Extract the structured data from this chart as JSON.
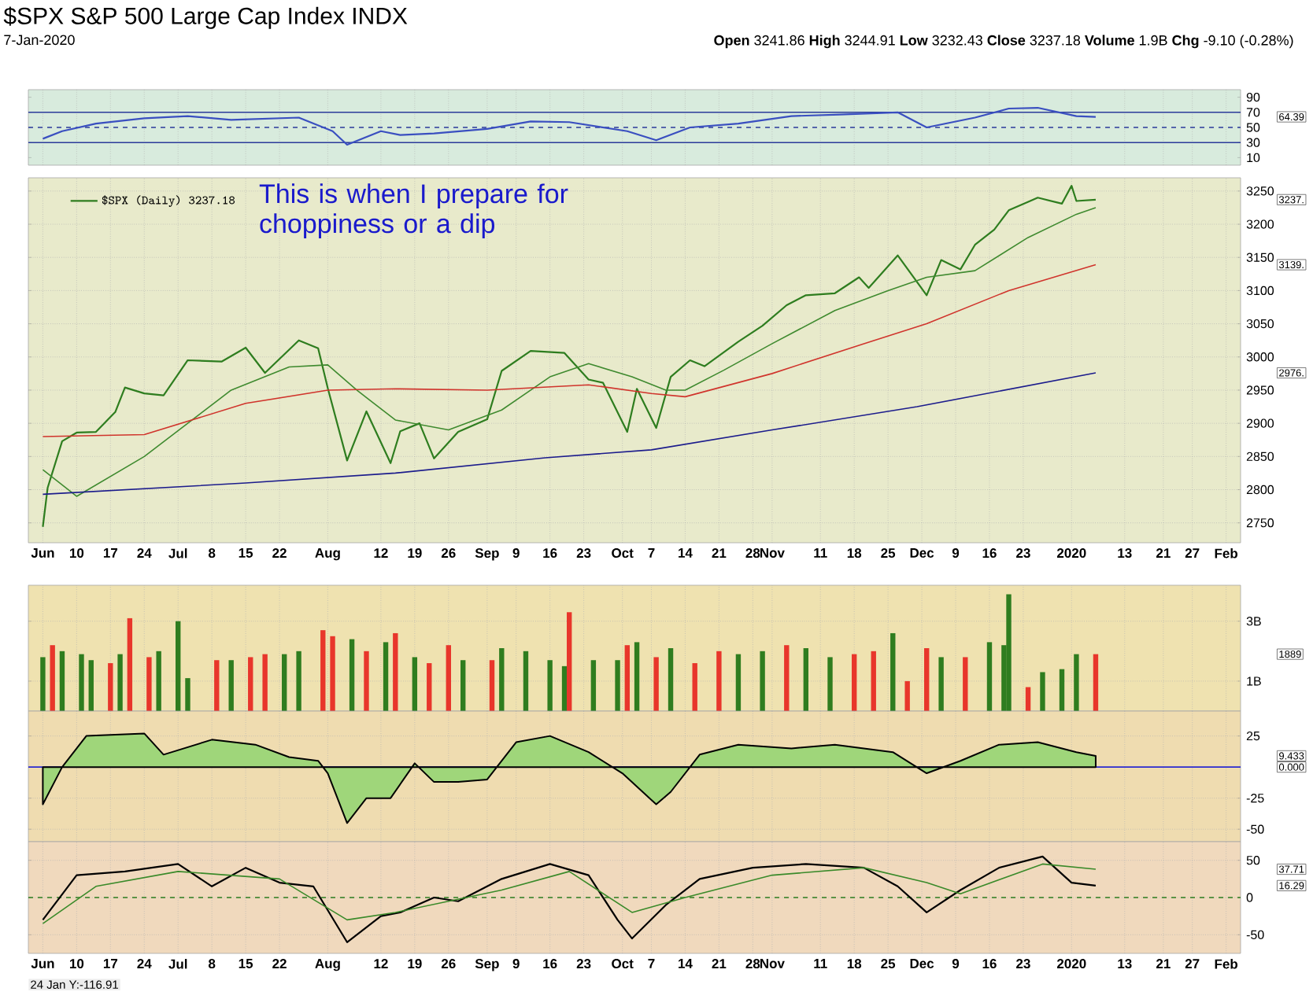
{
  "chart_data": [
    {
      "type": "line",
      "title": "$SPX S&P 500 Large Cap Index INDX",
      "subtitle": "7-Jan-2020",
      "annotations": [
        "**Open** 3241.86 **High** 3244.91 **Low** 3232.43 **Close** 3237.18 **Volume** 1.9B **Chg** -9.10 (-0.28%)",
        "64.39"
      ],
      "xlim": [
        "2019-05-31",
        "2020-02-06"
      ],
      "xticks": [
        {
          "value": "2019-06-03",
          "label": null
        },
        {
          "value": "2019-06-10",
          "label": null
        },
        {
          "value": "2019-06-17",
          "label": null
        },
        {
          "value": "2019-06-24",
          "label": null
        },
        {
          "value": "2019-07-01",
          "label": null
        },
        {
          "value": "2019-07-08",
          "label": null
        },
        {
          "value": "2019-07-15",
          "label": null
        },
        {
          "value": "2019-07-22",
          "label": null
        },
        {
          "value": "2019-08-01",
          "label": null
        },
        {
          "value": "2019-08-12",
          "label": null
        },
        {
          "value": "2019-08-19",
          "label": null
        },
        {
          "value": "2019-08-26",
          "label": null
        },
        {
          "value": "2019-09-03",
          "label": null
        },
        {
          "value": "2019-09-09",
          "label": null
        },
        {
          "value": "2019-09-16",
          "label": null
        },
        {
          "value": "2019-09-23",
          "label": null
        },
        {
          "value": "2019-10-01",
          "label": null
        },
        {
          "value": "2019-10-07",
          "label": null
        },
        {
          "value": "2019-10-14",
          "label": null
        },
        {
          "value": "2019-10-21",
          "label": null
        },
        {
          "value": "2019-10-28",
          "label": null
        },
        {
          "value": "2019-11-01",
          "label": null
        },
        {
          "value": "2019-11-11",
          "label": null
        },
        {
          "value": "2019-11-18",
          "label": null
        },
        {
          "value": "2019-11-25",
          "label": null
        },
        {
          "value": "2019-12-02",
          "label": null
        },
        {
          "value": "2019-12-09",
          "label": null
        },
        {
          "value": "2019-12-16",
          "label": null
        },
        {
          "value": "2019-12-23",
          "label": null
        },
        {
          "value": "2020-01-02",
          "label": null
        },
        {
          "value": "2020-01-13",
          "label": null
        },
        {
          "value": "2020-01-21",
          "label": null
        },
        {
          "value": "2020-01-27",
          "label": null
        },
        {
          "value": "2020-02-03",
          "label": null
        }
      ],
      "ylim": [
        0,
        100
      ],
      "yticks": [
        10,
        30,
        50,
        70,
        90
      ],
      "grid": "x",
      "tick_labels": "y",
      "ref_lines": [
        {
          "axis": "y",
          "value": 70,
          "color": "#2a3a9a",
          "line_style": "solid"
        },
        {
          "axis": "y",
          "value": 50,
          "color": "#2a3a9a",
          "line_style": "dashed"
        },
        {
          "axis": "y",
          "value": 30,
          "color": "#2a3a9a",
          "line_style": "solid"
        }
      ],
      "series": [
        {
          "color": "#3a4fc0",
          "x": [
            "2019-06-03",
            "2019-06-07",
            "2019-06-14",
            "2019-06-24",
            "2019-07-03",
            "2019-07-12",
            "2019-07-26",
            "2019-08-02",
            "2019-08-05",
            "2019-08-12",
            "2019-08-16",
            "2019-08-23",
            "2019-09-03",
            "2019-09-12",
            "2019-09-20",
            "2019-10-02",
            "2019-10-08",
            "2019-10-15",
            "2019-10-25",
            "2019-11-05",
            "2019-11-15",
            "2019-11-27",
            "2019-12-03",
            "2019-12-13",
            "2019-12-20",
            "2019-12-26",
            "2020-01-03",
            "2020-01-07"
          ],
          "values": [
            35,
            45,
            55,
            62,
            65,
            60,
            63,
            45,
            27,
            45,
            40,
            42,
            48,
            58,
            57,
            45,
            33,
            50,
            55,
            65,
            67,
            70,
            50,
            63,
            75,
            76,
            65,
            64
          ]
        }
      ]
    },
    {
      "type": "line",
      "legend": "top left",
      "annotations": [
        "This is when I prepare for choppiness or a dip",
        "3237.",
        "3139.",
        "2976."
      ],
      "xlim": [
        "2019-05-31",
        "2020-02-06"
      ],
      "xticks": [
        {
          "value": "2019-06-03",
          "label": "Jun"
        },
        {
          "value": "2019-06-10",
          "label": "10"
        },
        {
          "value": "2019-06-17",
          "label": "17"
        },
        {
          "value": "2019-06-24",
          "label": "24"
        },
        {
          "value": "2019-07-01",
          "label": "Jul"
        },
        {
          "value": "2019-07-08",
          "label": "8"
        },
        {
          "value": "2019-07-15",
          "label": "15"
        },
        {
          "value": "2019-07-22",
          "label": "22"
        },
        {
          "value": "2019-08-01",
          "label": "Aug"
        },
        {
          "value": "2019-08-12",
          "label": "12"
        },
        {
          "value": "2019-08-19",
          "label": "19"
        },
        {
          "value": "2019-08-26",
          "label": "26"
        },
        {
          "value": "2019-09-03",
          "label": "Sep"
        },
        {
          "value": "2019-09-09",
          "label": "9"
        },
        {
          "value": "2019-09-16",
          "label": "16"
        },
        {
          "value": "2019-09-23",
          "label": "23"
        },
        {
          "value": "2019-10-01",
          "label": "Oct"
        },
        {
          "value": "2019-10-07",
          "label": "7"
        },
        {
          "value": "2019-10-14",
          "label": "14"
        },
        {
          "value": "2019-10-21",
          "label": "21"
        },
        {
          "value": "2019-10-28",
          "label": "28"
        },
        {
          "value": "2019-11-01",
          "label": "Nov"
        },
        {
          "value": "2019-11-11",
          "label": "11"
        },
        {
          "value": "2019-11-18",
          "label": "18"
        },
        {
          "value": "2019-11-25",
          "label": "25"
        },
        {
          "value": "2019-12-02",
          "label": "Dec"
        },
        {
          "value": "2019-12-09",
          "label": "9"
        },
        {
          "value": "2019-12-16",
          "label": "16"
        },
        {
          "value": "2019-12-23",
          "label": "23"
        },
        {
          "value": "2020-01-02",
          "label": "2020"
        },
        {
          "value": "2020-01-13",
          "label": "13"
        },
        {
          "value": "2020-01-21",
          "label": "21"
        },
        {
          "value": "2020-01-27",
          "label": "27"
        },
        {
          "value": "2020-02-03",
          "label": "Feb"
        }
      ],
      "ylim": [
        2720,
        3270
      ],
      "yticks": [
        2750,
        2800,
        2850,
        2900,
        2950,
        3000,
        3050,
        3100,
        3150,
        3200,
        3250
      ],
      "grid": true,
      "series": [
        {
          "name": "$SPX (Daily) 3237.18",
          "color": "#2e7d1f",
          "x": [
            "2019-06-03",
            "2019-06-04",
            "2019-06-07",
            "2019-06-10",
            "2019-06-14",
            "2019-06-18",
            "2019-06-20",
            "2019-06-24",
            "2019-06-28",
            "2019-07-03",
            "2019-07-10",
            "2019-07-15",
            "2019-07-19",
            "2019-07-26",
            "2019-07-30",
            "2019-08-01",
            "2019-08-05",
            "2019-08-09",
            "2019-08-14",
            "2019-08-16",
            "2019-08-20",
            "2019-08-23",
            "2019-08-28",
            "2019-09-03",
            "2019-09-06",
            "2019-09-12",
            "2019-09-19",
            "2019-09-24",
            "2019-09-27",
            "2019-10-02",
            "2019-10-04",
            "2019-10-08",
            "2019-10-11",
            "2019-10-15",
            "2019-10-18",
            "2019-10-25",
            "2019-10-30",
            "2019-11-04",
            "2019-11-08",
            "2019-11-14",
            "2019-11-19",
            "2019-11-21",
            "2019-11-27",
            "2019-12-03",
            "2019-12-06",
            "2019-12-10",
            "2019-12-13",
            "2019-12-17",
            "2019-12-20",
            "2019-12-26",
            "2019-12-31",
            "2020-01-02",
            "2020-01-03",
            "2020-01-07"
          ],
          "values": [
            2744,
            2803,
            2873,
            2886,
            2887,
            2917,
            2954,
            2945,
            2942,
            2995,
            2993,
            3014,
            2976,
            3025,
            3013,
            2953,
            2844,
            2918,
            2840,
            2888,
            2900,
            2847,
            2887,
            2906,
            2979,
            3009,
            3006,
            2966,
            2961,
            2887,
            2952,
            2893,
            2970,
            2995,
            2986,
            3023,
            3047,
            3078,
            3093,
            3096,
            3120,
            3104,
            3153,
            3093,
            3146,
            3132,
            3169,
            3192,
            3221,
            3240,
            3231,
            3258,
            3235,
            3237
          ]
        },
        {
          "color": "#3f8a2f",
          "x": [
            "2019-06-03",
            "2019-06-10",
            "2019-06-24",
            "2019-07-03",
            "2019-07-12",
            "2019-07-24",
            "2019-08-01",
            "2019-08-07",
            "2019-08-15",
            "2019-08-26",
            "2019-09-06",
            "2019-09-16",
            "2019-09-24",
            "2019-10-03",
            "2019-10-10",
            "2019-10-14",
            "2019-10-22",
            "2019-11-01",
            "2019-11-14",
            "2019-11-25",
            "2019-12-03",
            "2019-12-13",
            "2019-12-24",
            "2020-01-03",
            "2020-01-07"
          ],
          "values": [
            2830,
            2790,
            2850,
            2900,
            2950,
            2985,
            2988,
            2950,
            2905,
            2890,
            2920,
            2970,
            2990,
            2970,
            2950,
            2950,
            2980,
            3020,
            3070,
            3100,
            3120,
            3130,
            3180,
            3215,
            3225
          ]
        },
        {
          "color": "#d0342c",
          "x": [
            "2019-06-03",
            "2019-06-24",
            "2019-07-15",
            "2019-08-01",
            "2019-08-15",
            "2019-09-03",
            "2019-09-24",
            "2019-10-07",
            "2019-10-14",
            "2019-11-01",
            "2019-11-20",
            "2019-12-03",
            "2019-12-20",
            "2020-01-07"
          ],
          "values": [
            2880,
            2883,
            2930,
            2950,
            2952,
            2950,
            2958,
            2945,
            2940,
            2975,
            3020,
            3050,
            3100,
            3139
          ]
        },
        {
          "color": "#1c1c8c",
          "x": [
            "2019-06-03",
            "2019-07-15",
            "2019-08-15",
            "2019-09-15",
            "2019-10-07",
            "2019-11-01",
            "2019-12-01",
            "2020-01-07"
          ],
          "values": [
            2793,
            2810,
            2825,
            2848,
            2860,
            2890,
            2925,
            2976
          ]
        }
      ]
    },
    {
      "type": "bar",
      "tick_labels": "y",
      "grid": true,
      "annotations": [
        "1889"
      ],
      "xlim": [
        "2019-05-31",
        "2020-02-06"
      ],
      "xticks": [
        {
          "value": "2019-06-03",
          "label": null
        },
        {
          "value": "2019-06-10",
          "label": null
        },
        {
          "value": "2019-06-17",
          "label": null
        },
        {
          "value": "2019-06-24",
          "label": null
        },
        {
          "value": "2019-07-01",
          "label": null
        },
        {
          "value": "2019-07-08",
          "label": null
        },
        {
          "value": "2019-07-15",
          "label": null
        },
        {
          "value": "2019-07-22",
          "label": null
        },
        {
          "value": "2019-08-01",
          "label": null
        },
        {
          "value": "2019-08-12",
          "label": null
        },
        {
          "value": "2019-08-19",
          "label": null
        },
        {
          "value": "2019-08-26",
          "label": null
        },
        {
          "value": "2019-09-03",
          "label": null
        },
        {
          "value": "2019-09-09",
          "label": null
        },
        {
          "value": "2019-09-16",
          "label": null
        },
        {
          "value": "2019-09-23",
          "label": null
        },
        {
          "value": "2019-10-01",
          "label": null
        },
        {
          "value": "2019-10-07",
          "label": null
        },
        {
          "value": "2019-10-14",
          "label": null
        },
        {
          "value": "2019-10-21",
          "label": null
        },
        {
          "value": "2019-10-28",
          "label": null
        },
        {
          "value": "2019-11-01",
          "label": null
        },
        {
          "value": "2019-11-11",
          "label": null
        },
        {
          "value": "2019-11-18",
          "label": null
        },
        {
          "value": "2019-11-25",
          "label": null
        },
        {
          "value": "2019-12-02",
          "label": null
        },
        {
          "value": "2019-12-09",
          "label": null
        },
        {
          "value": "2019-12-16",
          "label": null
        },
        {
          "value": "2019-12-23",
          "label": null
        },
        {
          "value": "2020-01-02",
          "label": null
        },
        {
          "value": "2020-01-13",
          "label": null
        },
        {
          "value": "2020-01-21",
          "label": null
        },
        {
          "value": "2020-01-27",
          "label": null
        },
        {
          "value": "2020-02-03",
          "label": null
        }
      ],
      "ylim": [
        0,
        4.2
      ],
      "yticks": [
        {
          "value": 1,
          "label": "1B"
        },
        {
          "value": 3,
          "label": "3B"
        }
      ],
      "series": [
        {
          "x": [
            "2019-06-03",
            "2019-06-05",
            "2019-06-07",
            "2019-06-11",
            "2019-06-13",
            "2019-06-17",
            "2019-06-19",
            "2019-06-21",
            "2019-06-25",
            "2019-06-27",
            "2019-07-01",
            "2019-07-03",
            "2019-07-09",
            "2019-07-12",
            "2019-07-16",
            "2019-07-19",
            "2019-07-23",
            "2019-07-26",
            "2019-07-31",
            "2019-08-02",
            "2019-08-06",
            "2019-08-09",
            "2019-08-13",
            "2019-08-15",
            "2019-08-19",
            "2019-08-22",
            "2019-08-26",
            "2019-08-29",
            "2019-09-04",
            "2019-09-06",
            "2019-09-11",
            "2019-09-16",
            "2019-09-19",
            "2019-09-20",
            "2019-09-25",
            "2019-09-30",
            "2019-10-02",
            "2019-10-04",
            "2019-10-08",
            "2019-10-11",
            "2019-10-16",
            "2019-10-21",
            "2019-10-25",
            "2019-10-30",
            "2019-11-04",
            "2019-11-08",
            "2019-11-13",
            "2019-11-18",
            "2019-11-22",
            "2019-11-26",
            "2019-11-29",
            "2019-12-03",
            "2019-12-06",
            "2019-12-11",
            "2019-12-16",
            "2019-12-19",
            "2019-12-20",
            "2019-12-24",
            "2019-12-27",
            "2019-12-31",
            "2020-01-03",
            "2020-01-07"
          ],
          "values": [
            1.8,
            2.2,
            2.0,
            1.9,
            1.7,
            1.6,
            1.9,
            3.1,
            1.8,
            2.0,
            3.0,
            1.1,
            1.7,
            1.7,
            1.8,
            1.9,
            1.9,
            2.0,
            2.7,
            2.5,
            2.4,
            2.0,
            2.3,
            2.6,
            1.8,
            1.6,
            2.2,
            1.7,
            1.7,
            2.1,
            2.0,
            1.7,
            1.5,
            3.3,
            1.7,
            1.7,
            2.2,
            2.3,
            1.8,
            2.1,
            1.6,
            2.0,
            1.9,
            2.0,
            2.2,
            2.1,
            1.8,
            1.9,
            2.0,
            2.6,
            1.0,
            2.1,
            1.8,
            1.8,
            2.3,
            2.2,
            3.9,
            0.8,
            1.3,
            1.4,
            1.9,
            1.9
          ],
          "colors": [
            "#2f7d1f",
            "#e8362b",
            "#2f7d1f",
            "#2f7d1f",
            "#2f7d1f",
            "#e8362b",
            "#2f7d1f",
            "#e8362b",
            "#e8362b",
            "#2f7d1f",
            "#2f7d1f",
            "#2f7d1f",
            "#e8362b",
            "#2f7d1f",
            "#e8362b",
            "#e8362b",
            "#2f7d1f",
            "#2f7d1f",
            "#e8362b",
            "#e8362b",
            "#2f7d1f",
            "#e8362b",
            "#2f7d1f",
            "#e8362b",
            "#2f7d1f",
            "#e8362b",
            "#e8362b",
            "#2f7d1f",
            "#e8362b",
            "#2f7d1f",
            "#2f7d1f",
            "#2f7d1f",
            "#2f7d1f",
            "#e8362b",
            "#2f7d1f",
            "#2f7d1f",
            "#e8362b",
            "#2f7d1f",
            "#e8362b",
            "#2f7d1f",
            "#e8362b",
            "#e8362b",
            "#2f7d1f",
            "#2f7d1f",
            "#e8362b",
            "#2f7d1f",
            "#2f7d1f",
            "#e8362b",
            "#e8362b",
            "#2f7d1f",
            "#e8362b",
            "#e8362b",
            "#2f7d1f",
            "#e8362b",
            "#2f7d1f",
            "#2f7d1f",
            "#2f7d1f",
            "#e8362b",
            "#2f7d1f",
            "#2f7d1f",
            "#2f7d1f",
            "#e8362b"
          ]
        }
      ]
    },
    {
      "type": "area",
      "tick_labels": "y",
      "grid": true,
      "annotations": [
        "9.433",
        "0.000"
      ],
      "xlim": [
        "2019-05-31",
        "2020-02-06"
      ],
      "xticks": [
        {
          "value": "2019-06-03",
          "label": null
        },
        {
          "value": "2019-06-10",
          "label": null
        },
        {
          "value": "2019-06-17",
          "label": null
        },
        {
          "value": "2019-06-24",
          "label": null
        },
        {
          "value": "2019-07-01",
          "label": null
        },
        {
          "value": "2019-07-08",
          "label": null
        },
        {
          "value": "2019-07-15",
          "label": null
        },
        {
          "value": "2019-07-22",
          "label": null
        },
        {
          "value": "2019-08-01",
          "label": null
        },
        {
          "value": "2019-08-12",
          "label": null
        },
        {
          "value": "2019-08-19",
          "label": null
        },
        {
          "value": "2019-08-26",
          "label": null
        },
        {
          "value": "2019-09-03",
          "label": null
        },
        {
          "value": "2019-09-09",
          "label": null
        },
        {
          "value": "2019-09-16",
          "label": null
        },
        {
          "value": "2019-09-23",
          "label": null
        },
        {
          "value": "2019-10-01",
          "label": null
        },
        {
          "value": "2019-10-07",
          "label": null
        },
        {
          "value": "2019-10-14",
          "label": null
        },
        {
          "value": "2019-10-21",
          "label": null
        },
        {
          "value": "2019-10-28",
          "label": null
        },
        {
          "value": "2019-11-01",
          "label": null
        },
        {
          "value": "2019-11-11",
          "label": null
        },
        {
          "value": "2019-11-18",
          "label": null
        },
        {
          "value": "2019-11-25",
          "label": null
        },
        {
          "value": "2019-12-02",
          "label": null
        },
        {
          "value": "2019-12-09",
          "label": null
        },
        {
          "value": "2019-12-16",
          "label": null
        },
        {
          "value": "2019-12-23",
          "label": null
        },
        {
          "value": "2020-01-02",
          "label": null
        },
        {
          "value": "2020-01-13",
          "label": null
        },
        {
          "value": "2020-01-21",
          "label": null
        },
        {
          "value": "2020-01-27",
          "label": null
        },
        {
          "value": "2020-02-03",
          "label": null
        }
      ],
      "ylim": [
        -60,
        45
      ],
      "yticks": [
        -50,
        -25,
        25
      ],
      "ref_lines": [
        {
          "axis": "y",
          "value": 0,
          "color": "#2a2ad0",
          "line_style": "solid"
        }
      ],
      "series": [
        {
          "color": "#9fd67a",
          "x": [
            "2019-06-03",
            "2019-06-07",
            "2019-06-12",
            "2019-06-24",
            "2019-06-28",
            "2019-07-08",
            "2019-07-17",
            "2019-07-24",
            "2019-07-30",
            "2019-08-01",
            "2019-08-05",
            "2019-08-09",
            "2019-08-14",
            "2019-08-19",
            "2019-08-23",
            "2019-08-28",
            "2019-09-03",
            "2019-09-09",
            "2019-09-16",
            "2019-09-24",
            "2019-10-01",
            "2019-10-08",
            "2019-10-11",
            "2019-10-17",
            "2019-10-25",
            "2019-11-05",
            "2019-11-14",
            "2019-11-26",
            "2019-12-03",
            "2019-12-10",
            "2019-12-18",
            "2019-12-26",
            "2020-01-03",
            "2020-01-07"
          ],
          "values": [
            -30,
            0,
            25,
            27,
            10,
            22,
            18,
            8,
            5,
            -5,
            -45,
            -25,
            -25,
            3,
            -12,
            -12,
            -10,
            20,
            25,
            12,
            -5,
            -30,
            -20,
            10,
            18,
            15,
            18,
            12,
            -5,
            5,
            18,
            20,
            12,
            9
          ]
        }
      ]
    },
    {
      "type": "line",
      "grid": true,
      "annotations": [
        "24 Jan Y:-116.91",
        "37.71",
        "16.29"
      ],
      "xlim": [
        "2019-05-31",
        "2020-02-06"
      ],
      "xticks": [
        {
          "value": "2019-06-03",
          "label": "Jun"
        },
        {
          "value": "2019-06-10",
          "label": "10"
        },
        {
          "value": "2019-06-17",
          "label": "17"
        },
        {
          "value": "2019-06-24",
          "label": "24"
        },
        {
          "value": "2019-07-01",
          "label": "Jul"
        },
        {
          "value": "2019-07-08",
          "label": "8"
        },
        {
          "value": "2019-07-15",
          "label": "15"
        },
        {
          "value": "2019-07-22",
          "label": "22"
        },
        {
          "value": "2019-08-01",
          "label": "Aug"
        },
        {
          "value": "2019-08-12",
          "label": "12"
        },
        {
          "value": "2019-08-19",
          "label": "19"
        },
        {
          "value": "2019-08-26",
          "label": "26"
        },
        {
          "value": "2019-09-03",
          "label": "Sep"
        },
        {
          "value": "2019-09-09",
          "label": "9"
        },
        {
          "value": "2019-09-16",
          "label": "16"
        },
        {
          "value": "2019-09-23",
          "label": "23"
        },
        {
          "value": "2019-10-01",
          "label": "Oct"
        },
        {
          "value": "2019-10-07",
          "label": "7"
        },
        {
          "value": "2019-10-14",
          "label": "14"
        },
        {
          "value": "2019-10-21",
          "label": "21"
        },
        {
          "value": "2019-10-28",
          "label": "28"
        },
        {
          "value": "2019-11-01",
          "label": "Nov"
        },
        {
          "value": "2019-11-11",
          "label": "11"
        },
        {
          "value": "2019-11-18",
          "label": "18"
        },
        {
          "value": "2019-11-25",
          "label": "25"
        },
        {
          "value": "2019-12-02",
          "label": "Dec"
        },
        {
          "value": "2019-12-09",
          "label": "9"
        },
        {
          "value": "2019-12-16",
          "label": "16"
        },
        {
          "value": "2019-12-23",
          "label": "23"
        },
        {
          "value": "2020-01-02",
          "label": "2020"
        },
        {
          "value": "2020-01-13",
          "label": "13"
        },
        {
          "value": "2020-01-21",
          "label": "21"
        },
        {
          "value": "2020-01-27",
          "label": "27"
        },
        {
          "value": "2020-02-03",
          "label": "Feb"
        }
      ],
      "ylim": [
        -75,
        75
      ],
      "yticks": [
        -50,
        0,
        50
      ],
      "ref_lines": [
        {
          "axis": "y",
          "value": 0,
          "color": "#2e7d1f",
          "line_style": "dashed"
        }
      ],
      "series": [
        {
          "color": "#000000",
          "x": [
            "2019-06-03",
            "2019-06-10",
            "2019-06-20",
            "2019-07-01",
            "2019-07-08",
            "2019-07-15",
            "2019-07-22",
            "2019-07-29",
            "2019-08-05",
            "2019-08-12",
            "2019-08-16",
            "2019-08-23",
            "2019-08-28",
            "2019-09-06",
            "2019-09-16",
            "2019-09-24",
            "2019-09-30",
            "2019-10-03",
            "2019-10-10",
            "2019-10-17",
            "2019-10-28",
            "2019-11-08",
            "2019-11-20",
            "2019-11-27",
            "2019-12-03",
            "2019-12-10",
            "2019-12-18",
            "2019-12-27",
            "2020-01-02",
            "2020-01-07"
          ],
          "values": [
            -30,
            30,
            35,
            45,
            15,
            40,
            20,
            15,
            -60,
            -25,
            -20,
            0,
            -5,
            25,
            45,
            30,
            -30,
            -55,
            -10,
            25,
            40,
            45,
            40,
            15,
            -20,
            10,
            40,
            55,
            20,
            16
          ]
        },
        {
          "color": "#3a8a2a",
          "x": [
            "2019-06-03",
            "2019-06-14",
            "2019-07-01",
            "2019-07-22",
            "2019-08-05",
            "2019-08-15",
            "2019-09-06",
            "2019-09-20",
            "2019-10-03",
            "2019-10-14",
            "2019-11-01",
            "2019-11-20",
            "2019-12-03",
            "2019-12-10",
            "2019-12-27",
            "2020-01-07"
          ],
          "values": [
            -35,
            15,
            35,
            25,
            -30,
            -20,
            10,
            35,
            -20,
            0,
            30,
            40,
            20,
            5,
            45,
            38
          ]
        }
      ]
    }
  ]
}
